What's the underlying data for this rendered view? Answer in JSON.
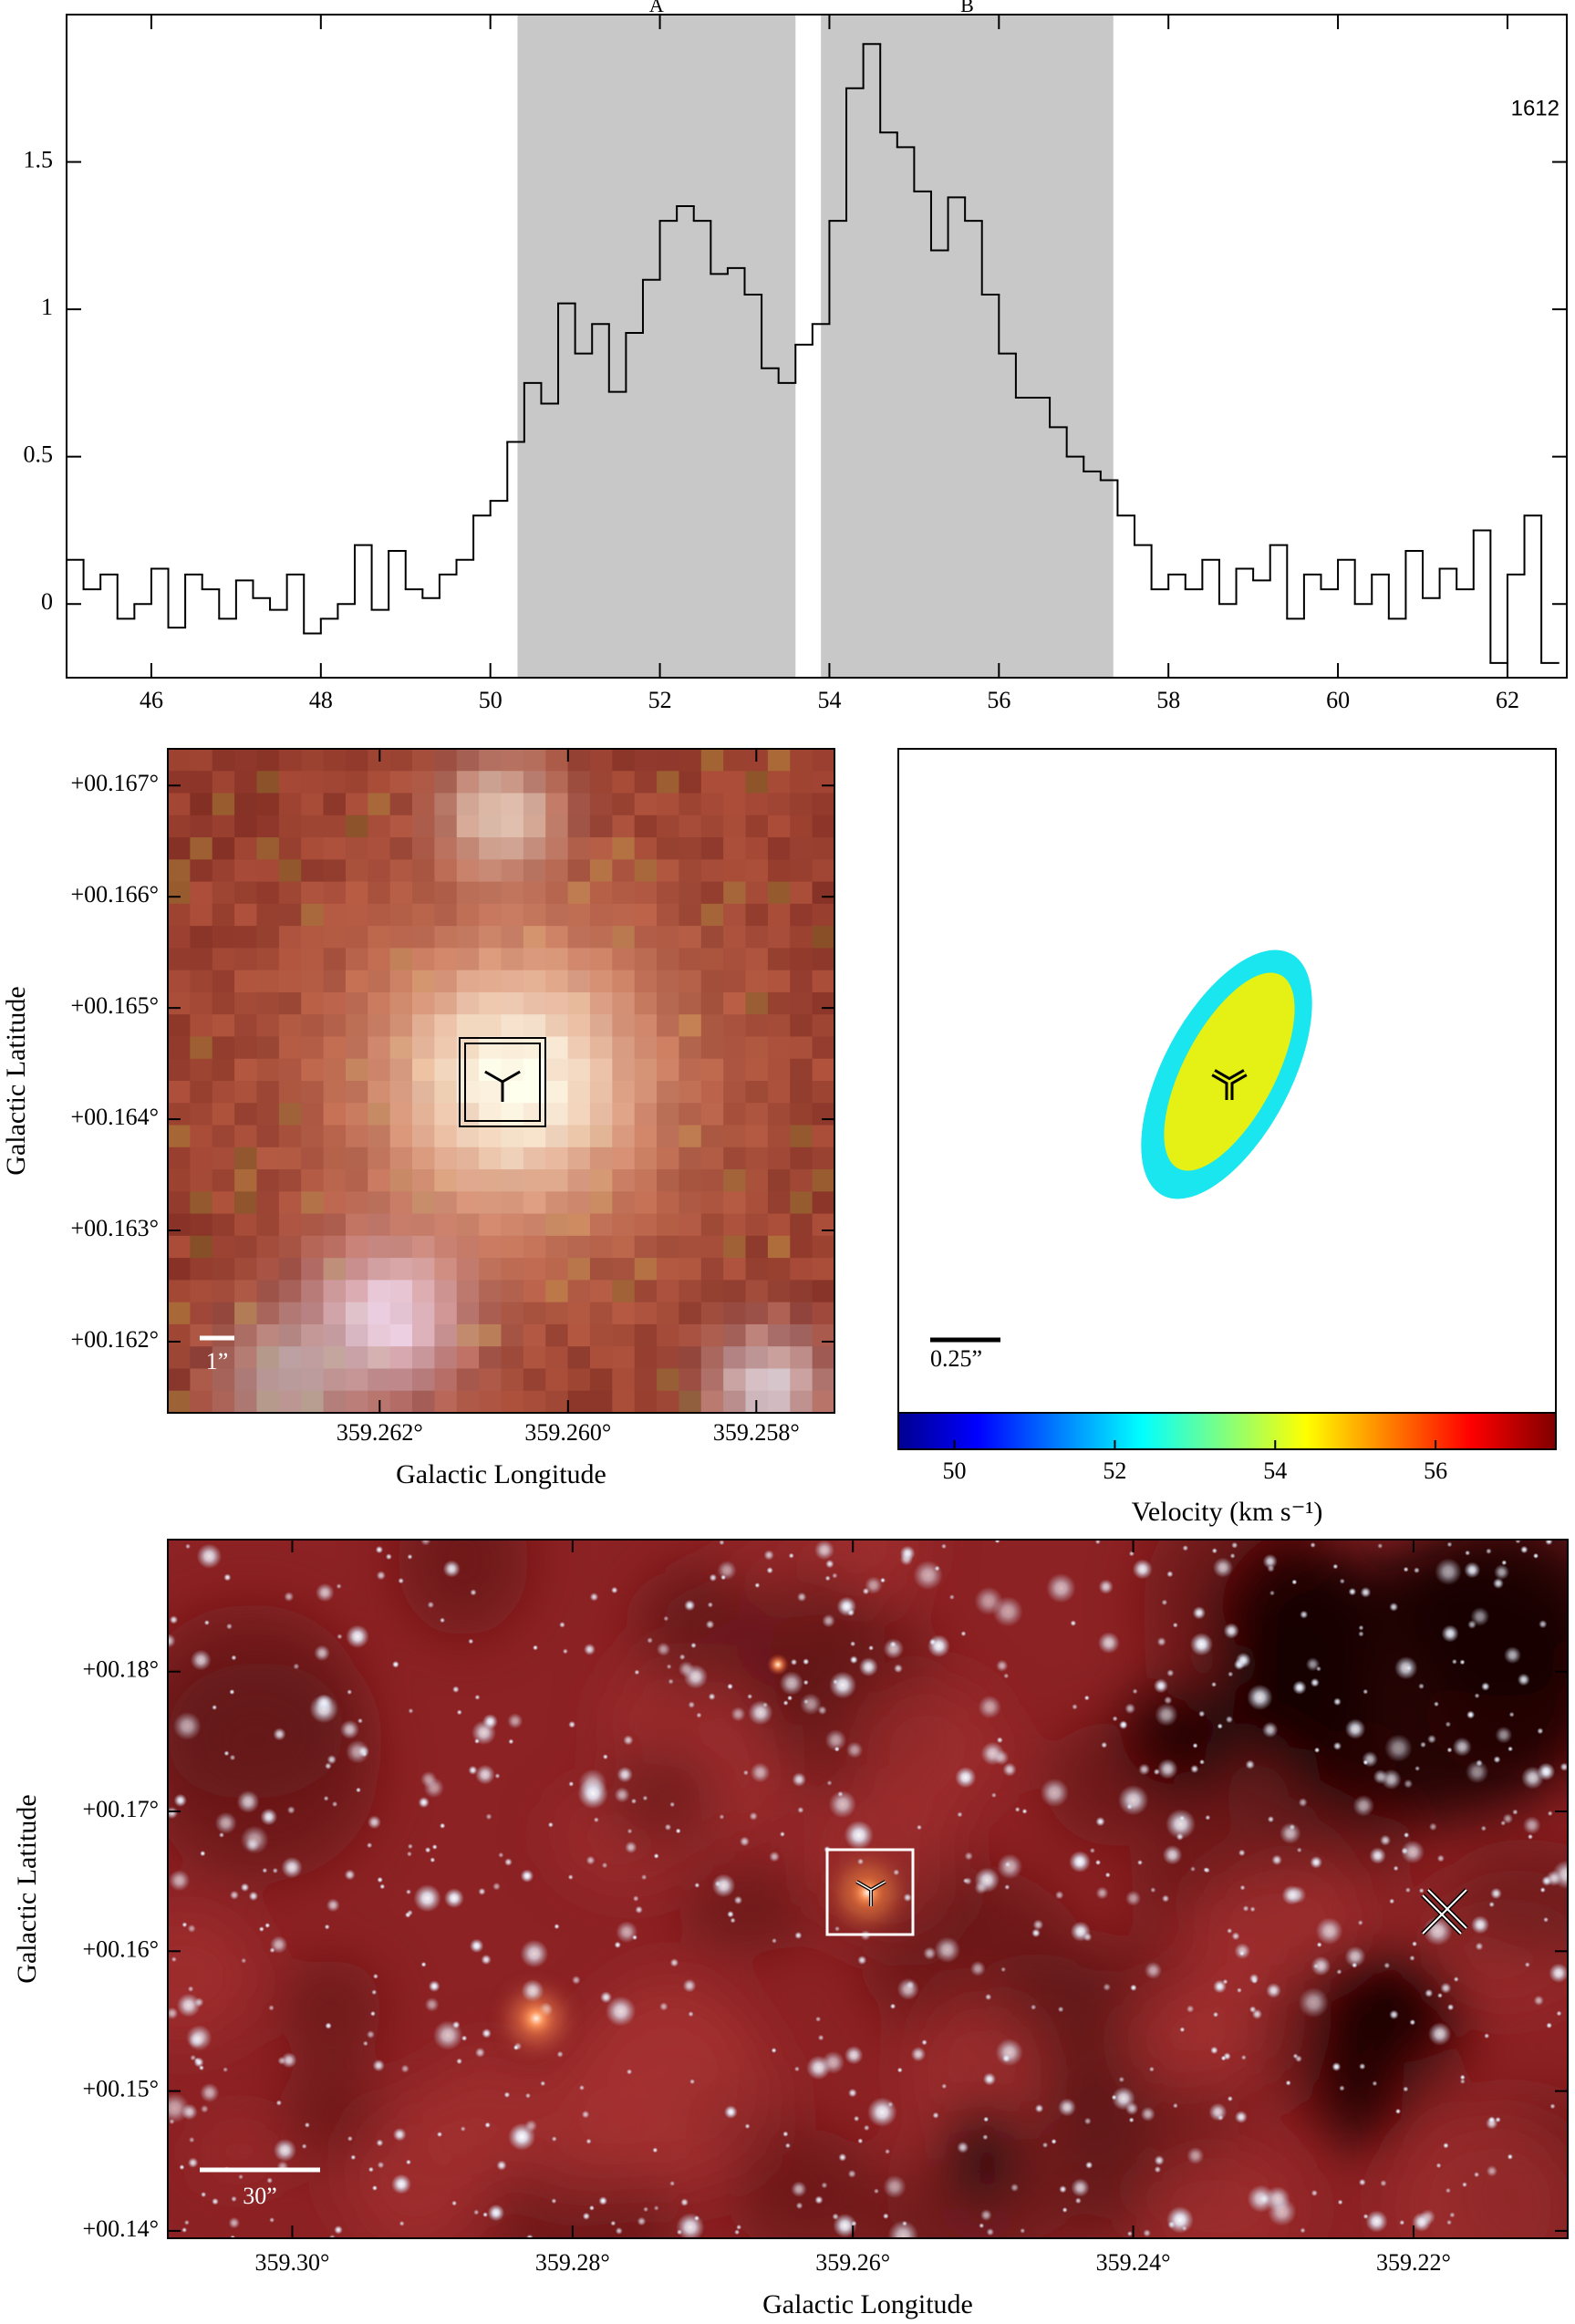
{
  "chart_data": [
    {
      "type": "step",
      "color": "#000000",
      "x": [
        45.1,
        45.3,
        45.5,
        45.7,
        45.9,
        46.1,
        46.3,
        46.5,
        46.7,
        46.9,
        47.1,
        47.3,
        47.5,
        47.7,
        47.9,
        48.1,
        48.3,
        48.5,
        48.7,
        48.9,
        49.1,
        49.3,
        49.5,
        49.7,
        49.9,
        50.1,
        50.3,
        50.5,
        50.7,
        50.9,
        51.1,
        51.3,
        51.5,
        51.7,
        51.9,
        52.1,
        52.3,
        52.5,
        52.7,
        52.9,
        53.1,
        53.3,
        53.5,
        53.7,
        53.9,
        54.1,
        54.3,
        54.5,
        54.7,
        54.9,
        55.1,
        55.3,
        55.5,
        55.7,
        55.9,
        56.1,
        56.3,
        56.5,
        56.7,
        56.9,
        57.1,
        57.3,
        57.5,
        57.7,
        57.9,
        58.1,
        58.3,
        58.5,
        58.7,
        58.9,
        59.1,
        59.3,
        59.5,
        59.7,
        59.9,
        60.1,
        60.3,
        60.5,
        60.7,
        60.9,
        61.1,
        61.3,
        61.5,
        61.7,
        61.9,
        62.1,
        62.3,
        62.5
      ],
      "values": [
        0.15,
        0.05,
        0.1,
        -0.05,
        0.0,
        0.12,
        -0.08,
        0.1,
        0.05,
        -0.05,
        0.08,
        0.02,
        -0.02,
        0.1,
        -0.1,
        -0.05,
        0.0,
        0.2,
        -0.02,
        0.18,
        0.05,
        0.02,
        0.1,
        0.15,
        0.3,
        0.35,
        0.55,
        0.75,
        0.68,
        1.02,
        0.85,
        0.95,
        0.72,
        0.92,
        1.1,
        1.3,
        1.35,
        1.3,
        1.12,
        1.14,
        1.05,
        0.8,
        0.75,
        0.88,
        0.95,
        1.3,
        1.75,
        1.9,
        1.6,
        1.55,
        1.4,
        1.2,
        1.38,
        1.3,
        1.05,
        0.85,
        0.7,
        0.7,
        0.6,
        0.5,
        0.45,
        0.42,
        0.3,
        0.2,
        0.05,
        0.1,
        0.05,
        0.15,
        0.0,
        0.12,
        0.08,
        0.2,
        -0.05,
        0.1,
        0.05,
        0.15,
        0.0,
        0.1,
        -0.05,
        0.18,
        0.02,
        0.12,
        0.05,
        0.25,
        -0.2,
        0.1,
        0.3,
        -0.2
      ],
      "xlim": [
        45,
        62.7
      ],
      "ylim": [
        -0.25,
        2.0
      ],
      "xticks": [
        46,
        48,
        50,
        52,
        54,
        56,
        58,
        60,
        62
      ],
      "yticks": [
        0,
        0.5,
        1,
        1.5
      ],
      "regions": [
        {
          "label": "A",
          "range": [
            50.32,
            53.6
          ]
        },
        {
          "label": "B",
          "range": [
            53.9,
            57.35
          ]
        }
      ],
      "region_color": "#c8c8c8",
      "annotation": "1612"
    },
    {
      "type": "image",
      "xlabel": "Galactic Longitude",
      "ylabel": "Galactic Latitude",
      "xlim": [
        359.26425,
        359.25717
      ],
      "ylim": [
        0.16136,
        0.16733
      ],
      "xticks": [
        {
          "value": 359.262,
          "label": "359.262°"
        },
        {
          "value": 359.26,
          "label": "359.260°"
        },
        {
          "value": 359.258,
          "label": "359.258°"
        }
      ],
      "yticks": [
        {
          "value": 0.167,
          "label": "+00.167°"
        },
        {
          "value": 0.166,
          "label": "+00.166°"
        },
        {
          "value": 0.165,
          "label": "+00.165°"
        },
        {
          "value": 0.164,
          "label": "+00.164°"
        },
        {
          "value": 0.163,
          "label": "+00.163°"
        },
        {
          "value": 0.162,
          "label": "+00.162°"
        }
      ],
      "scale_bar": "1”"
    },
    {
      "type": "velocity_map",
      "scale_bar": "0.25”",
      "colorbar": {
        "label": "Velocity (km s⁻¹)",
        "lim": [
          49.3,
          57.5
        ],
        "ticks": [
          50,
          52,
          54,
          56
        ]
      }
    },
    {
      "type": "image",
      "xlabel": "Galactic Longitude",
      "ylabel": "Galactic Latitude",
      "xlim": [
        359.30888,
        359.209
      ],
      "ylim": [
        0.13947,
        0.18944
      ],
      "xticks": [
        {
          "value": 359.3,
          "label": "359.30°"
        },
        {
          "value": 359.28,
          "label": "359.28°"
        },
        {
          "value": 359.26,
          "label": "359.26°"
        },
        {
          "value": 359.24,
          "label": "359.24°"
        },
        {
          "value": 359.22,
          "label": "359.22°"
        }
      ],
      "yticks": [
        {
          "value": 0.18,
          "label": "+00.18°"
        },
        {
          "value": 0.17,
          "label": "+00.17°"
        },
        {
          "value": 0.16,
          "label": "+00.16°"
        },
        {
          "value": 0.15,
          "label": "+00.15°"
        },
        {
          "value": 0.14,
          "label": "+00.14°"
        }
      ],
      "scale_bar": "30”"
    }
  ]
}
